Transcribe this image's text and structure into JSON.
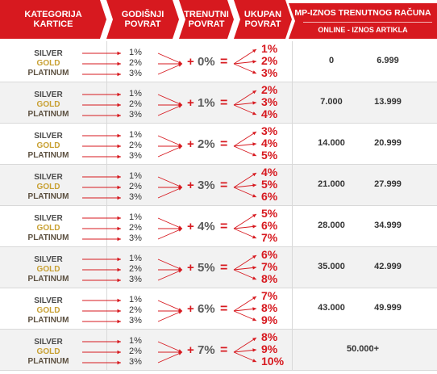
{
  "colors": {
    "accent": "#d7191f",
    "gold": "#c8a032",
    "row_alt": "#f2f2f2"
  },
  "header": {
    "col_category": [
      "KATEGORIJA",
      "KARTICE"
    ],
    "col_annual": [
      "GODIŠNJI",
      "POVRAT"
    ],
    "col_current": [
      "TRENUTNI",
      "POVRAT"
    ],
    "col_total": [
      "UKUPAN",
      "POVRAT"
    ],
    "col_mp_line1": "MP-IZNOS TRENUTNOG RAČUNA",
    "col_mp_line2": "ONLINE - IZNOS ARTIKLA"
  },
  "categories": [
    "SILVER",
    "GOLD",
    "PLATINUM"
  ],
  "rows": [
    {
      "annual": [
        "1%",
        "2%",
        "3%"
      ],
      "current": "0%",
      "total": [
        "1%",
        "2%",
        "3%"
      ],
      "mp_from": "0",
      "mp_to": "6.999"
    },
    {
      "annual": [
        "1%",
        "2%",
        "3%"
      ],
      "current": "1%",
      "total": [
        "2%",
        "3%",
        "4%"
      ],
      "mp_from": "7.000",
      "mp_to": "13.999"
    },
    {
      "annual": [
        "1%",
        "2%",
        "3%"
      ],
      "current": "2%",
      "total": [
        "3%",
        "4%",
        "5%"
      ],
      "mp_from": "14.000",
      "mp_to": "20.999"
    },
    {
      "annual": [
        "1%",
        "2%",
        "3%"
      ],
      "current": "3%",
      "total": [
        "4%",
        "5%",
        "6%"
      ],
      "mp_from": "21.000",
      "mp_to": "27.999"
    },
    {
      "annual": [
        "1%",
        "2%",
        "3%"
      ],
      "current": "4%",
      "total": [
        "5%",
        "6%",
        "7%"
      ],
      "mp_from": "28.000",
      "mp_to": "34.999"
    },
    {
      "annual": [
        "1%",
        "2%",
        "3%"
      ],
      "current": "5%",
      "total": [
        "6%",
        "7%",
        "8%"
      ],
      "mp_from": "35.000",
      "mp_to": "42.999"
    },
    {
      "annual": [
        "1%",
        "2%",
        "3%"
      ],
      "current": "6%",
      "total": [
        "7%",
        "8%",
        "9%"
      ],
      "mp_from": "43.000",
      "mp_to": "49.999"
    },
    {
      "annual": [
        "1%",
        "2%",
        "3%"
      ],
      "current": "7%",
      "total": [
        "8%",
        "9%",
        "10%"
      ],
      "mp_from": "50.000+",
      "mp_to": ""
    }
  ]
}
